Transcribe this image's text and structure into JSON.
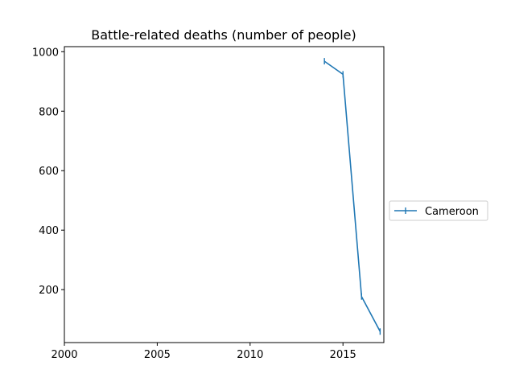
{
  "chart_data": {
    "type": "line",
    "title": "Battle-related deaths (number of people)",
    "xlabel": "",
    "ylabel": "",
    "xlim": [
      2000,
      2017.2
    ],
    "ylim": [
      22,
      1017
    ],
    "x_ticks": [
      2000,
      2005,
      2010,
      2015
    ],
    "y_ticks": [
      200,
      400,
      600,
      800,
      1000
    ],
    "x_tick_labels": [
      "2000",
      "2005",
      "2010",
      "2015"
    ],
    "y_tick_labels": [
      "200",
      "400",
      "600",
      "800",
      "1000"
    ],
    "grid": false,
    "legend_position": "right",
    "series": [
      {
        "name": "Cameroon",
        "color": "#1f77b4",
        "marker": "vertical-line",
        "x": [
          2014,
          2015,
          2016,
          2017
        ],
        "y": [
          968,
          924,
          177,
          59
        ]
      }
    ]
  }
}
